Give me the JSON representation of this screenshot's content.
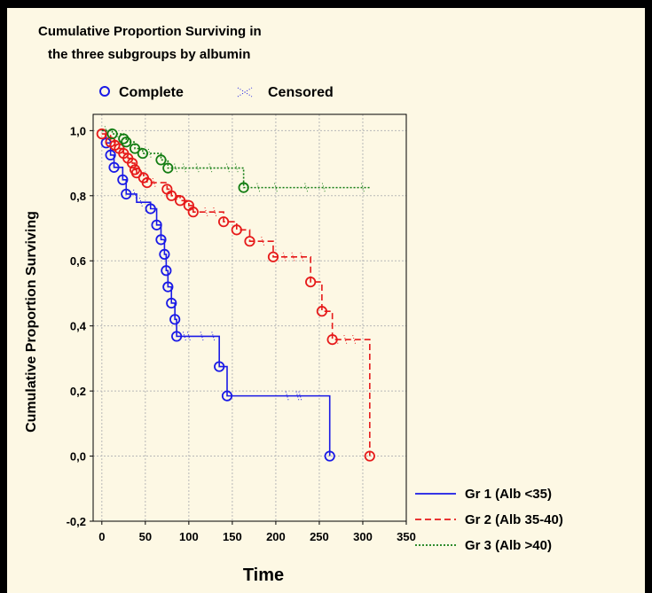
{
  "chart_data": {
    "type": "line",
    "title": "Cumulative Proportion Surviving in the three subgroups by albumin",
    "title_lines": [
      "Cumulative Proportion Surviving in",
      "the three subgroups by albumin"
    ],
    "xlabel": "Time",
    "ylabel": "Cumulative Proportion Surviving",
    "xlim": [
      -10,
      350
    ],
    "ylim": [
      -0.2,
      1.05
    ],
    "xticks": [
      "0",
      "50",
      "100",
      "150",
      "200",
      "250",
      "300",
      "350"
    ],
    "yticks": [
      "-0,2",
      "0,0",
      "0,2",
      "0,4",
      "0,6",
      "0,8",
      "1,0"
    ],
    "grid": true,
    "marker_legend": {
      "complete": "Complete",
      "censored": "Censored"
    },
    "legend_position": "bottom-right",
    "series": [
      {
        "name": "Gr 1 (Alb <35)",
        "color": "#1a1ae6",
        "dash": "solid",
        "steps": [
          [
            0,
            1.0
          ],
          [
            5,
            0.962
          ],
          [
            10,
            0.925
          ],
          [
            14,
            0.887
          ],
          [
            24,
            0.849
          ],
          [
            28,
            0.805
          ],
          [
            38,
            0.805
          ],
          [
            40,
            0.78
          ],
          [
            50,
            0.78
          ],
          [
            56,
            0.76
          ],
          [
            63,
            0.71
          ],
          [
            68,
            0.665
          ],
          [
            72,
            0.62
          ],
          [
            74,
            0.57
          ],
          [
            76,
            0.52
          ],
          [
            80,
            0.47
          ],
          [
            84,
            0.42
          ],
          [
            86,
            0.368
          ],
          [
            135,
            0.368
          ],
          [
            135,
            0.275
          ],
          [
            144,
            0.275
          ],
          [
            144,
            0.185
          ],
          [
            262,
            0.185
          ],
          [
            262,
            0.0
          ]
        ],
        "events": [
          [
            5,
            0.962
          ],
          [
            10,
            0.925
          ],
          [
            14,
            0.887
          ],
          [
            24,
            0.849
          ],
          [
            28,
            0.805
          ],
          [
            56,
            0.76
          ],
          [
            63,
            0.71
          ],
          [
            68,
            0.665
          ],
          [
            72,
            0.62
          ],
          [
            74,
            0.57
          ],
          [
            76,
            0.52
          ],
          [
            80,
            0.47
          ],
          [
            84,
            0.42
          ],
          [
            86,
            0.368
          ],
          [
            135,
            0.275
          ],
          [
            144,
            0.185
          ],
          [
            262,
            0.0
          ]
        ],
        "censored": [
          [
            38,
            0.805
          ],
          [
            45,
            0.78
          ],
          [
            95,
            0.368
          ],
          [
            100,
            0.368
          ],
          [
            115,
            0.368
          ],
          [
            128,
            0.368
          ],
          [
            213,
            0.185
          ],
          [
            225,
            0.185
          ],
          [
            228,
            0.185
          ]
        ]
      },
      {
        "name": "Gr 2 (Alb 35-40)",
        "color": "#e61a1a",
        "dash": "dashed",
        "steps": [
          [
            0,
            0.99
          ],
          [
            4,
            0.985
          ],
          [
            10,
            0.965
          ],
          [
            15,
            0.955
          ],
          [
            20,
            0.945
          ],
          [
            25,
            0.93
          ],
          [
            30,
            0.915
          ],
          [
            35,
            0.9
          ],
          [
            38,
            0.88
          ],
          [
            40,
            0.87
          ],
          [
            48,
            0.855
          ],
          [
            52,
            0.84
          ],
          [
            75,
            0.82
          ],
          [
            80,
            0.8
          ],
          [
            90,
            0.785
          ],
          [
            100,
            0.77
          ],
          [
            105,
            0.75
          ],
          [
            140,
            0.72
          ],
          [
            155,
            0.695
          ],
          [
            170,
            0.66
          ],
          [
            197,
            0.612
          ],
          [
            240,
            0.535
          ],
          [
            253,
            0.445
          ],
          [
            265,
            0.358
          ],
          [
            308,
            0.358
          ],
          [
            308,
            0.0
          ]
        ],
        "events": [
          [
            0,
            0.99
          ],
          [
            10,
            0.965
          ],
          [
            15,
            0.955
          ],
          [
            20,
            0.945
          ],
          [
            25,
            0.93
          ],
          [
            30,
            0.915
          ],
          [
            35,
            0.9
          ],
          [
            38,
            0.88
          ],
          [
            40,
            0.87
          ],
          [
            48,
            0.855
          ],
          [
            52,
            0.84
          ],
          [
            75,
            0.82
          ],
          [
            80,
            0.8
          ],
          [
            90,
            0.785
          ],
          [
            100,
            0.77
          ],
          [
            105,
            0.75
          ],
          [
            140,
            0.72
          ],
          [
            155,
            0.695
          ],
          [
            170,
            0.66
          ],
          [
            197,
            0.612
          ],
          [
            240,
            0.535
          ],
          [
            253,
            0.445
          ],
          [
            265,
            0.358
          ],
          [
            308,
            0.0
          ]
        ],
        "censored": [
          [
            5,
            0.988
          ],
          [
            60,
            0.84
          ],
          [
            85,
            0.8
          ],
          [
            120,
            0.75
          ],
          [
            130,
            0.75
          ],
          [
            185,
            0.66
          ],
          [
            210,
            0.612
          ],
          [
            220,
            0.612
          ],
          [
            230,
            0.612
          ],
          [
            270,
            0.358
          ],
          [
            280,
            0.358
          ],
          [
            290,
            0.358
          ]
        ]
      },
      {
        "name": "Gr 3 (Alb >40)",
        "color": "#137d13",
        "dash": "dotted",
        "steps": [
          [
            0,
            1.0
          ],
          [
            12,
            0.99
          ],
          [
            25,
            0.975
          ],
          [
            28,
            0.965
          ],
          [
            38,
            0.945
          ],
          [
            47,
            0.93
          ],
          [
            68,
            0.91
          ],
          [
            76,
            0.885
          ],
          [
            163,
            0.885
          ],
          [
            163,
            0.825
          ],
          [
            308,
            0.825
          ]
        ],
        "events": [
          [
            12,
            0.99
          ],
          [
            25,
            0.975
          ],
          [
            28,
            0.965
          ],
          [
            38,
            0.945
          ],
          [
            47,
            0.93
          ],
          [
            68,
            0.91
          ],
          [
            76,
            0.885
          ],
          [
            163,
            0.825
          ]
        ],
        "censored": [
          [
            5,
            1.0
          ],
          [
            18,
            0.985
          ],
          [
            55,
            0.93
          ],
          [
            85,
            0.885
          ],
          [
            95,
            0.885
          ],
          [
            110,
            0.885
          ],
          [
            125,
            0.885
          ],
          [
            145,
            0.885
          ],
          [
            155,
            0.885
          ],
          [
            180,
            0.825
          ],
          [
            200,
            0.825
          ],
          [
            235,
            0.825
          ],
          [
            255,
            0.825
          ],
          [
            300,
            0.825
          ]
        ]
      }
    ]
  }
}
